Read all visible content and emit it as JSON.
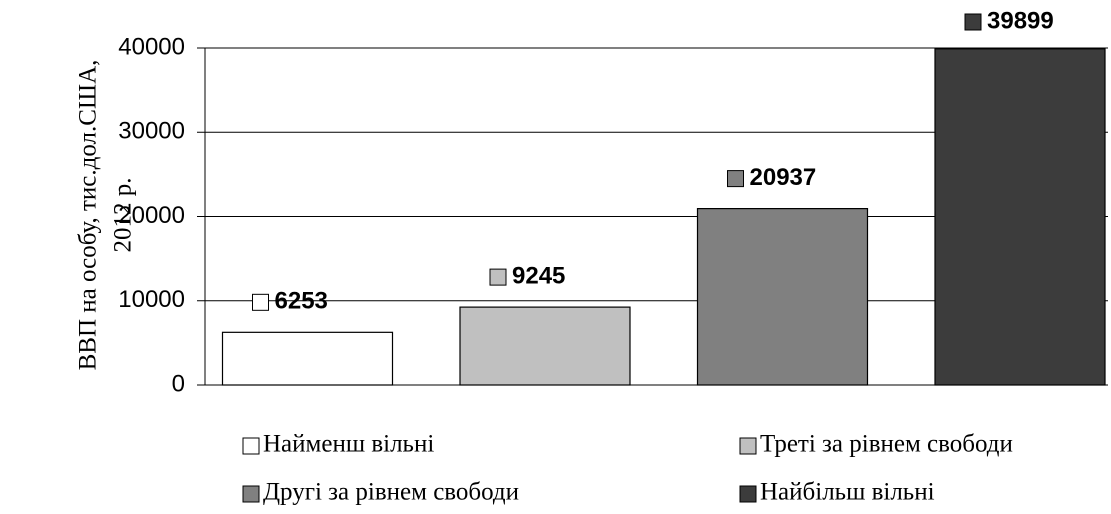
{
  "chart_data": {
    "type": "bar",
    "y_label_lines": [
      "ВВП на особу, тис.дол.США,",
      "2012 р."
    ],
    "series": [
      {
        "name": "Найменш вільні",
        "color": "#ffffff",
        "values": [
          6253
        ]
      },
      {
        "name": "Треті за рівнем свободи",
        "color": "#c0c0c0",
        "values": [
          9245
        ]
      },
      {
        "name": "Другі за рівнем свободи",
        "color": "#808080",
        "values": [
          20937
        ]
      },
      {
        "name": "Найбільш вільні",
        "color": "#3c3c3c",
        "values": [
          39899
        ]
      }
    ],
    "ylim": [
      0,
      40000
    ],
    "yticks": [
      0,
      10000,
      20000,
      30000,
      40000
    ],
    "grid": true
  }
}
